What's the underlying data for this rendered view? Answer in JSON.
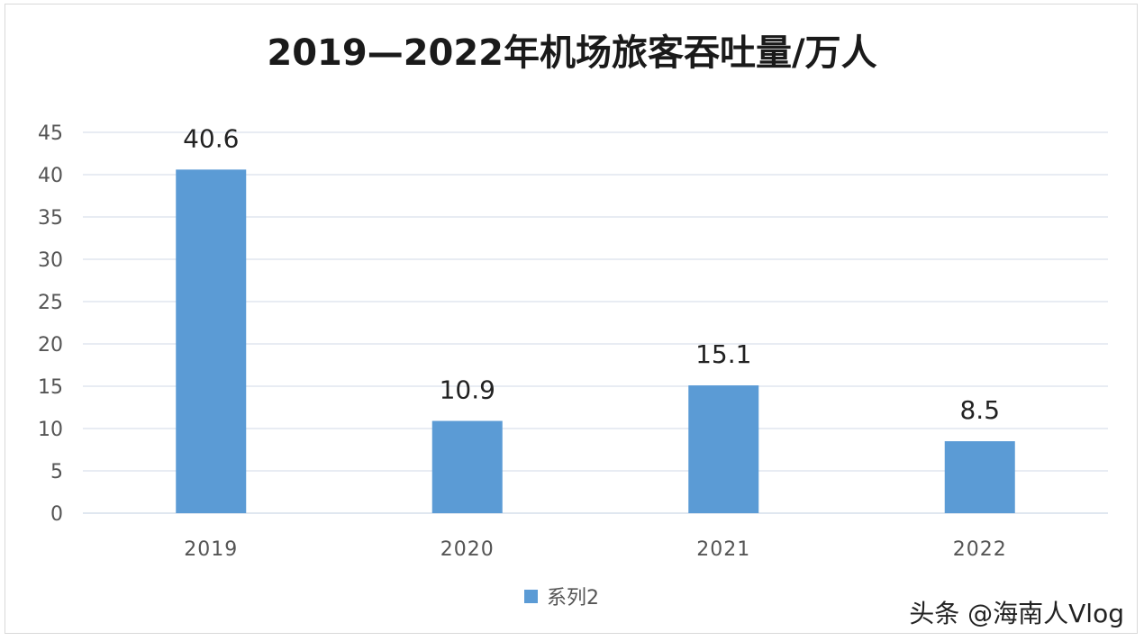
{
  "chart_data": {
    "type": "bar",
    "title": "2019—2022年机场旅客吞吐量/万人",
    "categories": [
      "2019",
      "2020",
      "2021",
      "2022"
    ],
    "series": [
      {
        "name": "系列2",
        "values": [
          40.6,
          10.9,
          15.1,
          8.5
        ],
        "data_labels": [
          "40.6",
          "10.9",
          "15.1",
          "8.5"
        ],
        "color": "#5b9bd5"
      }
    ],
    "ylim": [
      0,
      45
    ],
    "y_ticks": [
      "0",
      "5",
      "10",
      "15",
      "20",
      "25",
      "30",
      "35",
      "40",
      "45"
    ],
    "grid": true,
    "legend_position": "bottom",
    "xlabel": "",
    "ylabel": ""
  },
  "colors": {
    "bar": "#5b9bd5",
    "grid": "#d9e1ec",
    "axis_text": "#555555",
    "label_text": "#222222"
  },
  "watermark": {
    "text": "头条 @海南人Vlog"
  }
}
